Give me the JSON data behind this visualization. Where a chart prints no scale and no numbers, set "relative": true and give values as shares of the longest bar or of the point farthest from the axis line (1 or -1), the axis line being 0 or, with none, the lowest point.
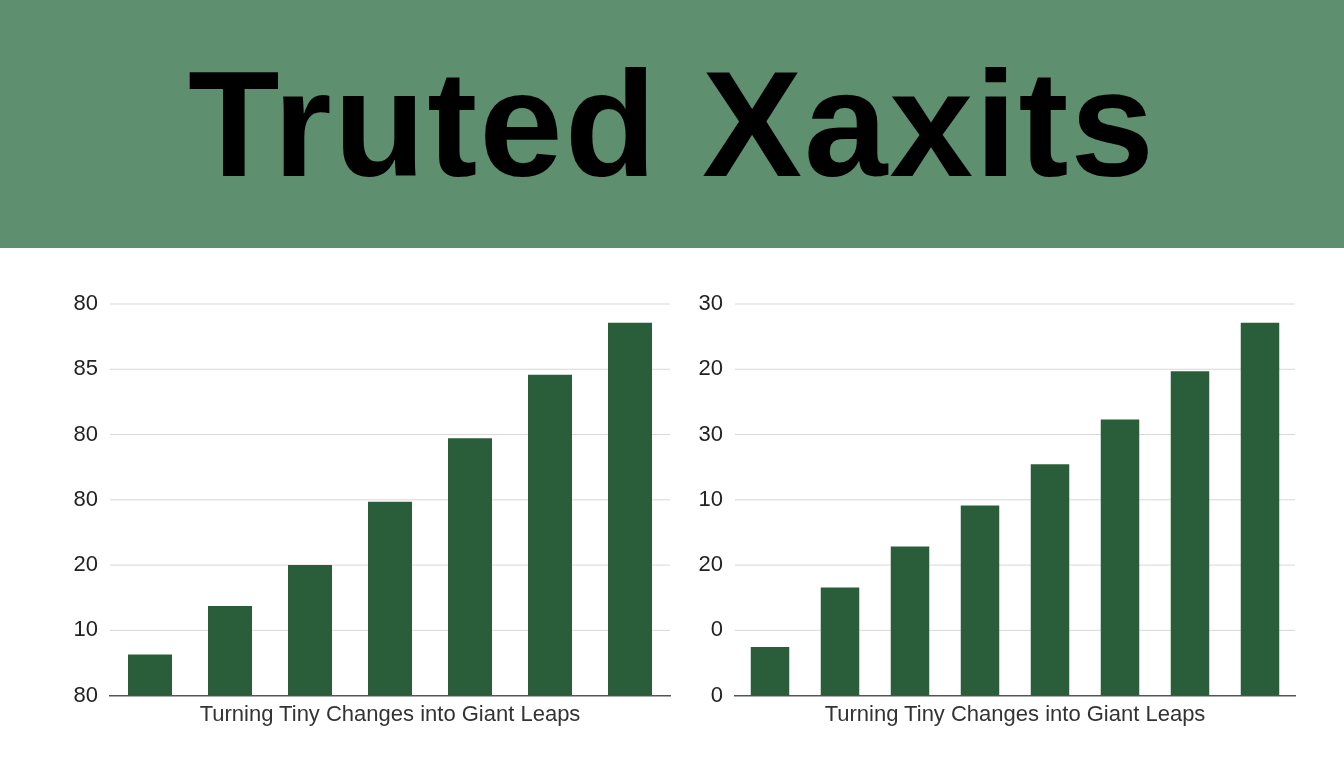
{
  "chart_data": [
    {
      "type": "bar",
      "title": "Truted Xaxits",
      "xlabel": "Turning Tiny Changes into Giant Leaps",
      "categories": [
        null,
        null,
        null,
        null,
        null,
        null,
        null
      ],
      "color": "#2a5e3a",
      "relative": true,
      "values": [
        0.11,
        0.24,
        0.35,
        0.52,
        0.69,
        0.86,
        1
      ],
      "annotations": [
        "80",
        "85",
        "80",
        "80",
        "20",
        "10",
        "80"
      ],
      "grid": "y"
    },
    {
      "type": "bar",
      "xlabel": "Turning Tiny Changes into Giant Leaps",
      "categories": [
        null,
        null,
        null,
        null,
        null,
        null,
        null,
        null
      ],
      "color": "#2a5e3a",
      "relative": true,
      "values": [
        0.13,
        0.29,
        0.4,
        0.51,
        0.62,
        0.74,
        0.87,
        1
      ],
      "annotations": [
        "30",
        "20",
        "30",
        "10",
        "20",
        "0",
        "0"
      ],
      "grid": "y"
    }
  ]
}
